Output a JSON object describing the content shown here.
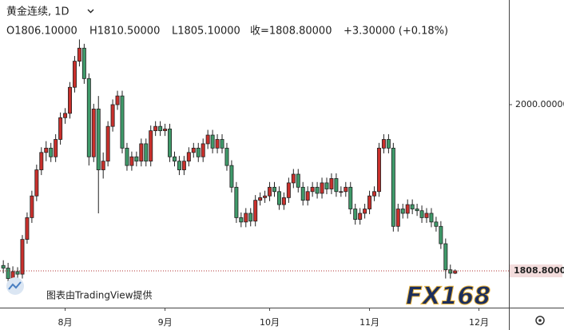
{
  "chart_data": {
    "type": "candlestick",
    "title": "黄金连续, 1D",
    "legend_items": [
      "O1806.10000",
      "H1810.50000",
      "L1805.10000",
      "收=1808.80000",
      "+3.30000 (+0.18%)"
    ],
    "watermark": "图表由TradingView提供",
    "logo": "FX168",
    "up_color": "#c9302c",
    "down_color": "#3f9a6a",
    "ylim": [
      1766.5,
      2120.4
    ],
    "yticks": [
      {
        "value": 2000,
        "label": "2000.00000"
      }
    ],
    "last_price": {
      "value": 1808.8,
      "label": "1808.80000"
    },
    "xlim": [
      -0.7,
      106.3
    ],
    "xticks": [
      {
        "value": 13,
        "label": "8月"
      },
      {
        "value": 34,
        "label": "9月"
      },
      {
        "value": 56,
        "label": "10月"
      },
      {
        "value": 77,
        "label": "11月"
      },
      {
        "value": 100,
        "label": "12月"
      }
    ],
    "open": [
      1815,
      1812,
      1800,
      1808,
      1805,
      1845,
      1870,
      1895,
      1925,
      1945,
      1950,
      1940,
      1960,
      1985,
      1990,
      2020,
      2050,
      2065,
      2030,
      1940,
      1995,
      1925,
      1935,
      1975,
      2000,
      2010,
      1950,
      1930,
      1940,
      1935,
      1955,
      1935,
      1970,
      1975,
      1970,
      1972,
      1940,
      1935,
      1925,
      1935,
      1945,
      1950,
      1940,
      1955,
      1965,
      1950,
      1960,
      1950,
      1930,
      1905,
      1870,
      1865,
      1875,
      1866,
      1890,
      1893,
      1895,
      1905,
      1900,
      1885,
      1893,
      1910,
      1920,
      1905,
      1890,
      1900,
      1905,
      1898,
      1910,
      1903,
      1915,
      1900,
      1900,
      1905,
      1880,
      1868,
      1875,
      1880,
      1895,
      1900,
      1950,
      1960,
      1950,
      1860,
      1880,
      1875,
      1885,
      1880,
      1878,
      1870,
      1875,
      1865,
      1860,
      1840,
      1810,
      1806.1
    ],
    "high": [
      1821,
      1818,
      1814,
      1813,
      1850,
      1876,
      1901,
      1931,
      1951,
      1958,
      1956,
      1966,
      1991,
      1996,
      2026,
      2056,
      2075,
      2070,
      2036,
      2001,
      2010,
      1945,
      1981,
      2006,
      2016,
      2016,
      1956,
      1946,
      1946,
      1961,
      1961,
      1976,
      1981,
      1981,
      1978,
      1978,
      1946,
      1941,
      1941,
      1951,
      1956,
      1956,
      1961,
      1971,
      1971,
      1966,
      1966,
      1956,
      1936,
      1911,
      1876,
      1881,
      1881,
      1896,
      1899,
      1901,
      1911,
      1911,
      1906,
      1899,
      1916,
      1926,
      1926,
      1911,
      1906,
      1911,
      1911,
      1916,
      1916,
      1921,
      1921,
      1906,
      1911,
      1911,
      1886,
      1881,
      1886,
      1901,
      1906,
      1956,
      1966,
      1966,
      1956,
      1886,
      1886,
      1891,
      1891,
      1886,
      1884,
      1881,
      1881,
      1871,
      1866,
      1846,
      1816,
      1810.5
    ],
    "low": [
      1806,
      1794,
      1796,
      1800,
      1800,
      1840,
      1864,
      1889,
      1919,
      1935,
      1934,
      1934,
      1954,
      1978,
      1984,
      2014,
      2044,
      2024,
      1930,
      1934,
      1875,
      1915,
      1929,
      1969,
      1994,
      1944,
      1924,
      1924,
      1929,
      1929,
      1929,
      1929,
      1964,
      1964,
      1964,
      1934,
      1929,
      1919,
      1919,
      1929,
      1939,
      1934,
      1934,
      1949,
      1944,
      1944,
      1944,
      1924,
      1899,
      1864,
      1859,
      1859,
      1860,
      1860,
      1884,
      1887,
      1889,
      1894,
      1879,
      1879,
      1887,
      1904,
      1899,
      1884,
      1884,
      1894,
      1892,
      1892,
      1897,
      1897,
      1894,
      1894,
      1894,
      1874,
      1862,
      1862,
      1869,
      1874,
      1889,
      1894,
      1944,
      1944,
      1854,
      1854,
      1869,
      1869,
      1874,
      1872,
      1864,
      1864,
      1859,
      1854,
      1834,
      1800,
      1800,
      1805.1
    ],
    "close": [
      1812,
      1800,
      1808,
      1805,
      1845,
      1870,
      1895,
      1925,
      1945,
      1950,
      1940,
      1960,
      1985,
      1990,
      2020,
      2050,
      2065,
      2030,
      1940,
      1995,
      1925,
      1935,
      1975,
      2000,
      2010,
      1950,
      1930,
      1940,
      1935,
      1955,
      1935,
      1970,
      1975,
      1970,
      1972,
      1940,
      1935,
      1925,
      1935,
      1945,
      1950,
      1940,
      1955,
      1965,
      1950,
      1960,
      1950,
      1930,
      1905,
      1870,
      1865,
      1875,
      1866,
      1890,
      1893,
      1895,
      1905,
      1900,
      1885,
      1893,
      1910,
      1920,
      1905,
      1890,
      1900,
      1905,
      1898,
      1910,
      1903,
      1915,
      1900,
      1900,
      1905,
      1880,
      1868,
      1875,
      1880,
      1895,
      1900,
      1950,
      1960,
      1950,
      1860,
      1880,
      1875,
      1885,
      1880,
      1878,
      1870,
      1875,
      1865,
      1860,
      1840,
      1810,
      1806.1,
      1808.8
    ]
  }
}
